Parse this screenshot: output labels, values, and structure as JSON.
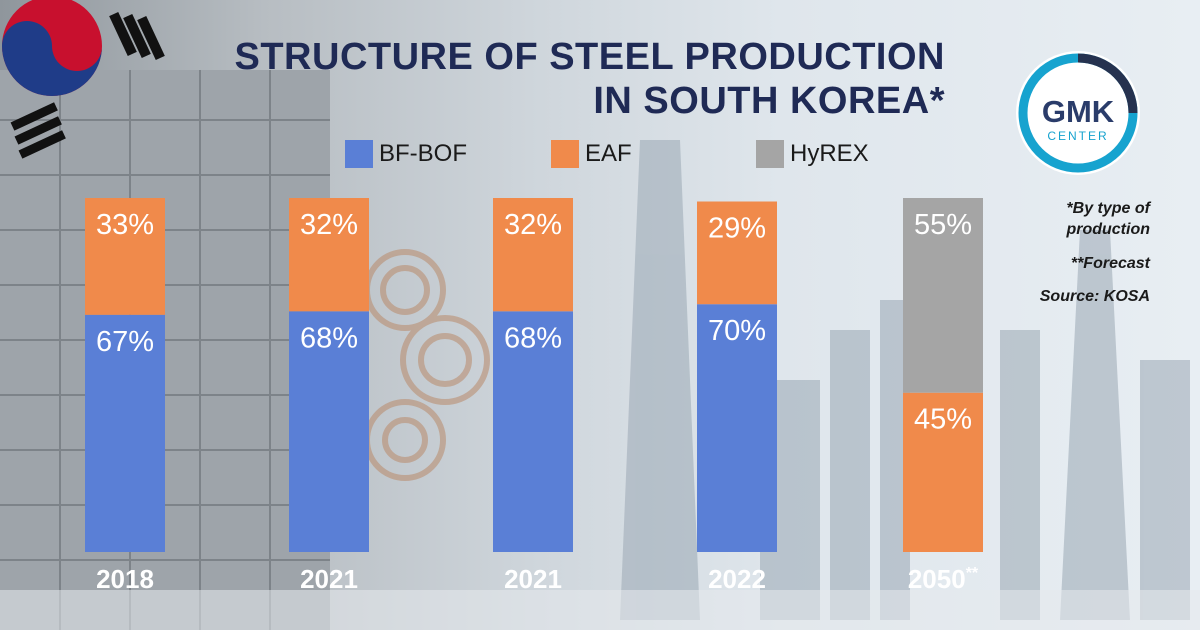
{
  "logo": {
    "main": "GMK",
    "sub": "CENTER"
  },
  "notes": {
    "by_type_1": "*By type of",
    "by_type_2": "production",
    "forecast": "**Forecast",
    "source": "Source: KOSA"
  },
  "chart_data": {
    "type": "bar",
    "stacked": true,
    "title": "STRUCTURE OF STEEL PRODUCTION IN SOUTH KOREA*",
    "title_line1": "STRUCTURE OF STEEL PRODUCTION",
    "title_line2": "IN SOUTH KOREA*",
    "categories": [
      "2018",
      "2021",
      "2021",
      "2022",
      "2050"
    ],
    "category_marks": [
      "",
      "",
      "",
      "",
      "**"
    ],
    "value_unit": "%",
    "ylim": [
      0,
      100
    ],
    "legend": "top",
    "series": [
      {
        "name": "BF-BOF",
        "color": "#5a7fd6",
        "values": [
          67,
          68,
          68,
          70,
          0
        ]
      },
      {
        "name": "EAF",
        "color": "#f08a4b",
        "values": [
          33,
          32,
          32,
          29,
          45
        ]
      },
      {
        "name": "HyREX",
        "color": "#a5a5a5",
        "values": [
          0,
          0,
          0,
          0,
          55
        ]
      }
    ]
  }
}
